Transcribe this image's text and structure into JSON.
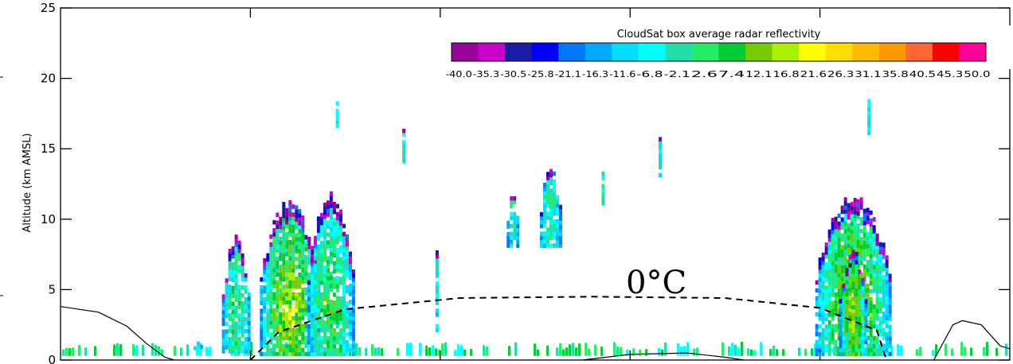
{
  "chart_data": {
    "type": "heatmap",
    "title": "",
    "ylabel": "Altitude (km AMSL)",
    "xlabel": "",
    "ylim": [
      0,
      25
    ],
    "yticks": [
      0,
      5,
      10,
      15,
      20,
      25
    ],
    "x_tick_count": 4,
    "grid": false,
    "colorbar": {
      "title": "CloudSat box average radar reflectivity",
      "placement": "top-right",
      "levels": [
        "-40.0",
        "-35.3",
        "-30.5",
        "-25.8",
        "-21.1",
        "-16.3",
        "-11.6",
        "-6.8",
        "-2.1",
        "2.6",
        "7.4",
        "12.1",
        "16.8",
        "21.6",
        "26.3",
        "31.1",
        "35.8",
        "40.5",
        "45.3",
        "50.0"
      ],
      "colors": [
        "#990099",
        "#cc00cc",
        "#1a1aa6",
        "#0000ff",
        "#0077ff",
        "#00aaff",
        "#00ddff",
        "#00ffff",
        "#22ddaa",
        "#22ee66",
        "#00cc33",
        "#77cc00",
        "#aaee00",
        "#ffff00",
        "#ffdd00",
        "#ffbb00",
        "#ff9900",
        "#ff6633",
        "#ff0000",
        "#ff0099"
      ]
    },
    "annotations": [
      {
        "text": "0°C",
        "placement": "above the dashed freezing-level line"
      }
    ],
    "freezing_level": [
      [
        0.2,
        0
      ],
      [
        0.23,
        2.0
      ],
      [
        0.3,
        3.6
      ],
      [
        0.42,
        4.4
      ],
      [
        0.56,
        4.5
      ],
      [
        0.7,
        4.4
      ],
      [
        0.8,
        3.7
      ],
      [
        0.86,
        2.1
      ],
      [
        0.87,
        0
      ]
    ],
    "terrain": [
      [
        0.0,
        3.8
      ],
      [
        0.04,
        3.4
      ],
      [
        0.07,
        2.4
      ],
      [
        0.09,
        1.2
      ],
      [
        0.11,
        0.2
      ],
      [
        0.12,
        0
      ]
    ],
    "terrain_right": [
      [
        0.92,
        0
      ],
      [
        0.94,
        2.5
      ],
      [
        0.95,
        2.8
      ],
      [
        0.97,
        2.5
      ],
      [
        0.99,
        1.0
      ],
      [
        1.0,
        0.8
      ]
    ],
    "surface_bump": [
      [
        0.55,
        0
      ],
      [
        0.6,
        0.4
      ],
      [
        0.66,
        0.5
      ],
      [
        0.7,
        0.2
      ],
      [
        0.72,
        0
      ]
    ],
    "cells": [
      {
        "x": 0.14,
        "w": 0.01,
        "ybase": 0.5,
        "ytop": 2.0,
        "intensity": 0.2
      },
      {
        "x": 0.17,
        "w": 0.03,
        "ybase": 0.5,
        "ytop": 9.0,
        "intensity": 0.45
      },
      {
        "x": 0.21,
        "w": 0.065,
        "ybase": 0.3,
        "ytop": 11.5,
        "intensity": 0.75
      },
      {
        "x": 0.26,
        "w": 0.05,
        "ybase": 0.3,
        "ytop": 12.0,
        "intensity": 0.55
      },
      {
        "x": 0.47,
        "w": 0.015,
        "ybase": 8.0,
        "ytop": 12.5,
        "intensity": 0.3
      },
      {
        "x": 0.505,
        "w": 0.025,
        "ybase": 8.0,
        "ytop": 14.0,
        "intensity": 0.35
      },
      {
        "x": 0.795,
        "w": 0.08,
        "ybase": 0.3,
        "ytop": 12.0,
        "intensity": 0.75
      },
      {
        "x": 0.82,
        "w": 0.03,
        "ybase": 0.3,
        "ytop": 8.0,
        "intensity": 0.7
      },
      {
        "x": 0.57,
        "w": 0.004,
        "ybase": 11.0,
        "ytop": 13.5,
        "intensity": 0.3
      },
      {
        "x": 0.63,
        "w": 0.004,
        "ybase": 13.0,
        "ytop": 16.5,
        "intensity": 0.25
      },
      {
        "x": 0.85,
        "w": 0.004,
        "ybase": 16.0,
        "ytop": 19.5,
        "intensity": 0.25
      },
      {
        "x": 0.36,
        "w": 0.004,
        "ybase": 14.0,
        "ytop": 16.5,
        "intensity": 0.3
      },
      {
        "x": 0.29,
        "w": 0.003,
        "ybase": 16.5,
        "ytop": 18.5,
        "intensity": 0.25
      },
      {
        "x": 0.395,
        "w": 0.004,
        "ybase": 2.0,
        "ytop": 8.5,
        "intensity": 0.25
      }
    ],
    "near_surface_band": {
      "ybase": 0.3,
      "ytop": 1.3
    }
  }
}
